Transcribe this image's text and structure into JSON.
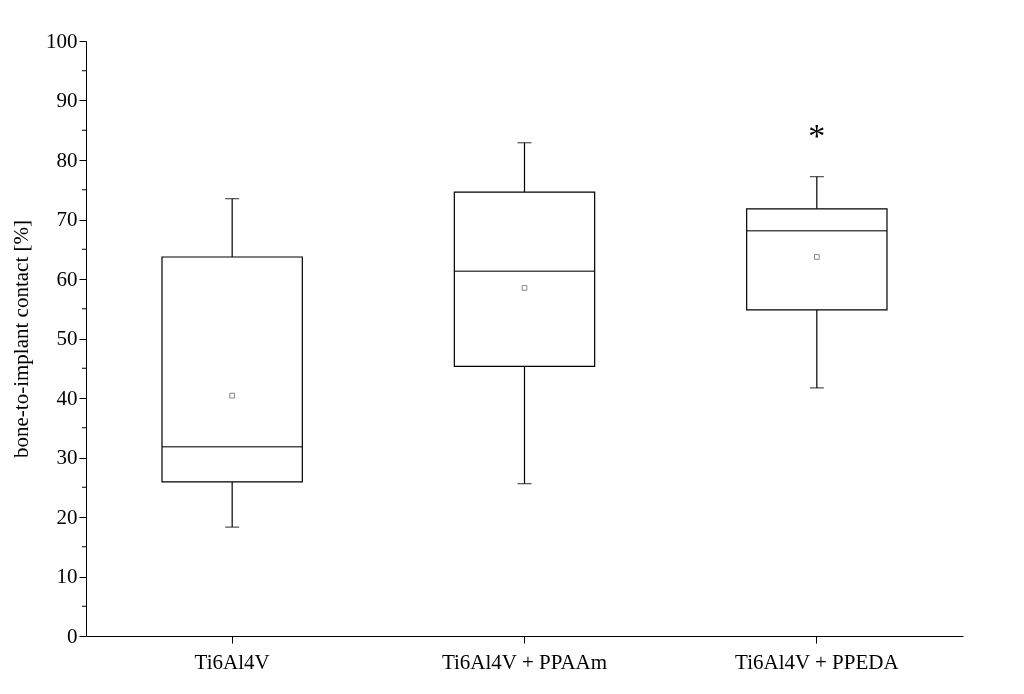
{
  "chart_data": {
    "type": "box",
    "ylabel": "bone-to-implant contact [%]",
    "categories": [
      "Ti6Al4V",
      "Ti6Al4V + PPAAm",
      "Ti6Al4V + PPEDA"
    ],
    "boxes": [
      {
        "low": 18.3,
        "q1": 25.9,
        "median": 31.8,
        "q3": 63.7,
        "high": 73.5,
        "mean": 40.4
      },
      {
        "low": 25.6,
        "q1": 45.3,
        "median": 61.3,
        "q3": 74.6,
        "high": 82.9,
        "mean": 58.5
      },
      {
        "low": 41.7,
        "q1": 54.8,
        "median": 68.1,
        "q3": 71.8,
        "high": 77.2,
        "mean": 63.7
      }
    ],
    "ylim": [
      0,
      100
    ],
    "yticks": [
      0,
      {
        "value": 5,
        "label": null
      },
      10,
      {
        "value": 15,
        "label": null
      },
      20,
      {
        "value": 25,
        "label": null
      },
      30,
      {
        "value": 35,
        "label": null
      },
      40,
      {
        "value": 45,
        "label": null
      },
      50,
      {
        "value": 55,
        "label": null
      },
      60,
      {
        "value": 65,
        "label": null
      },
      70,
      {
        "value": 75,
        "label": null
      },
      80,
      {
        "value": 85,
        "label": null
      },
      90,
      {
        "value": 95,
        "label": null
      },
      100
    ],
    "annotations": [
      "*"
    ],
    "grid": false
  }
}
